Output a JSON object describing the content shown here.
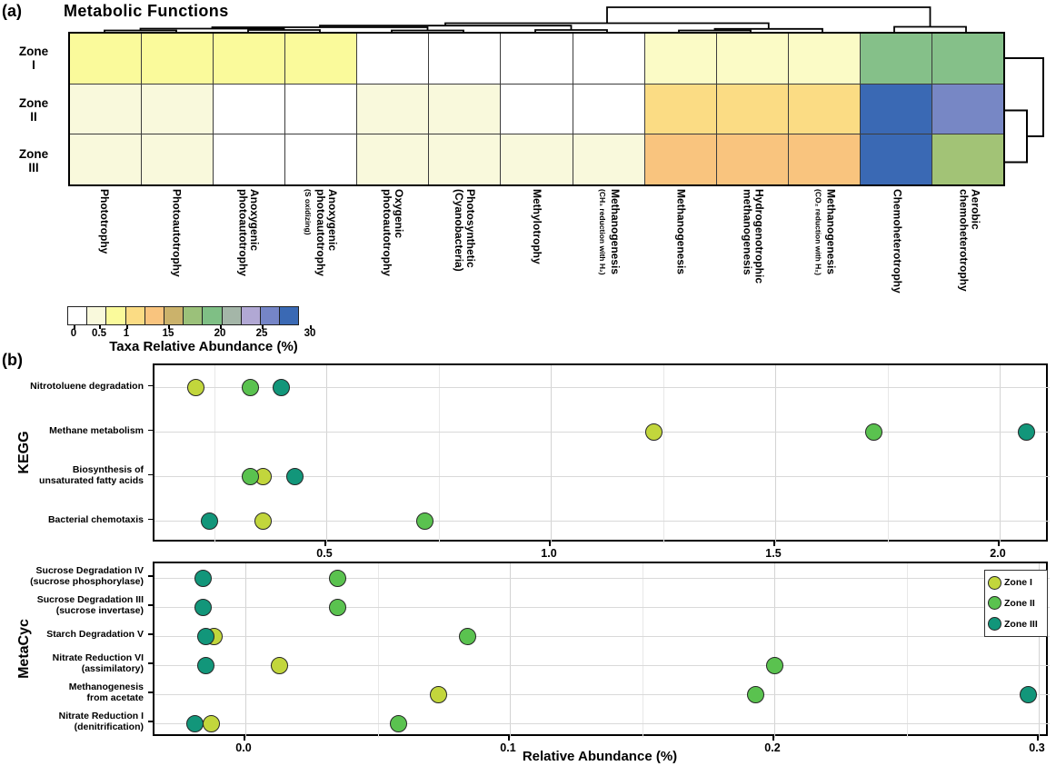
{
  "panel_a": {
    "label": "(a)",
    "title": "Metabolic Functions",
    "row_labels": [
      "Zone\nI",
      "Zone\nII",
      "Zone\nIII"
    ],
    "column_labels": [
      {
        "main": "Phototrophy",
        "sub": ""
      },
      {
        "main": "Photoautotrophy",
        "sub": ""
      },
      {
        "main": "Anoxygenic\nphotoautotrophy",
        "sub": ""
      },
      {
        "main": "Anoxygenic\nphotoautotrophy",
        "sub": "(S oxidizing)"
      },
      {
        "main": "Oxygenic\nphotoautotrophy",
        "sub": ""
      },
      {
        "main": "Photosynthetic\n(Cyanobacteria)",
        "sub": ""
      },
      {
        "main": "Methylotrophy",
        "sub": ""
      },
      {
        "main": "Methanogenesis",
        "sub": "(CH₃ reduction with H₂)"
      },
      {
        "main": "Methanogenesis",
        "sub": ""
      },
      {
        "main": "Hydrogenotrophic\nmethanogenesis",
        "sub": ""
      },
      {
        "main": "Methanogenesis",
        "sub": "(CO₂ reduction with H₂)"
      },
      {
        "main": "Chemoheterotrophy",
        "sub": ""
      },
      {
        "main": "Aerobic\nchemoheterotrophy",
        "sub": ""
      }
    ],
    "colorbar": {
      "caption": "Taxa Relative Abundance (%)",
      "swatches": [
        "#ffffff",
        "#f9f9dc",
        "#fafa9b",
        "#fbdc84",
        "#f9c47e",
        "#cbb26b",
        "#9bc17a",
        "#7fbf85",
        "#a4b6a8",
        "#b1a8d4",
        "#7585c7",
        "#3a69b4"
      ],
      "tick_labels": [
        "0",
        "0.5",
        "1",
        "15",
        "20",
        "25",
        "30"
      ],
      "tick_offsets": [
        7,
        35,
        65,
        111,
        168,
        214,
        267
      ]
    }
  },
  "panel_b": {
    "label": "(b)",
    "xlabel": "Relative Abundance (%)",
    "legend": {
      "entries": [
        "Zone I",
        "Zone II",
        "Zone III"
      ],
      "colors": [
        "#c2d63c",
        "#5ac24f",
        "#12967a"
      ]
    }
  },
  "zone_colors": {
    "zone1": "#c2d63c",
    "zone2": "#5ac24f",
    "zone3": "#12967a"
  },
  "chart_data": [
    {
      "type": "heatmap",
      "title": "Metabolic Functions",
      "rows": [
        "Zone I",
        "Zone II",
        "Zone III"
      ],
      "columns": [
        "Phototrophy",
        "Photoautotrophy",
        "Anoxygenic photoautotrophy",
        "Anoxygenic photoautotrophy (S oxidizing)",
        "Oxygenic photoautotrophy",
        "Photosynthetic (Cyanobacteria)",
        "Methylotrophy",
        "Methanogenesis (CH₃ reduction with H₂)",
        "Methanogenesis",
        "Hydrogenotrophic methanogenesis",
        "Methanogenesis (CO₂ reduction with H₂)",
        "Chemoheterotrophy",
        "Aerobic chemoheterotrophy"
      ],
      "value_note": "cell colors encode Taxa Relative Abundance (%) per non-linear scale 0,0.5,1,15,20,25,30",
      "cell_colors": [
        [
          "#fafa9b",
          "#fafa9b",
          "#fafa9b",
          "#fafa9b",
          "#ffffff",
          "#ffffff",
          "#ffffff",
          "#ffffff",
          "#fbfbc6",
          "#fbfbc6",
          "#fbfbc6",
          "#85c089",
          "#85c089"
        ],
        [
          "#f9f9dc",
          "#f9f9dc",
          "#ffffff",
          "#ffffff",
          "#f9f9dc",
          "#f9f9dc",
          "#ffffff",
          "#ffffff",
          "#fbdc84",
          "#fbdc84",
          "#fbdc84",
          "#3a69b4",
          "#7787c5"
        ],
        [
          "#f9f9dc",
          "#f9f9dc",
          "#ffffff",
          "#ffffff",
          "#f9f9dc",
          "#f9f9dc",
          "#f9f9dc",
          "#f9f9dc",
          "#f9c47e",
          "#f9c47e",
          "#f9c47e",
          "#3a69b4",
          "#a2c376"
        ]
      ],
      "colorbar_breaks": [
        "0",
        "0.5",
        "1",
        "15",
        "20",
        "25",
        "30"
      ]
    },
    {
      "type": "scatter",
      "group": "KEGG",
      "categories": [
        "Nitrotoluene degradation",
        "Methane metabolism",
        "Biosynthesis of unsaturated fatty acids",
        "Bacterial chemotaxis"
      ],
      "category_display": [
        "Nitrotoluene degradation",
        "Methane metabolism",
        "Biosynthesis of\nunsaturated fatty acids",
        "Bacterial chemotaxis"
      ],
      "series": [
        {
          "name": "Zone I",
          "values": [
            0.21,
            1.23,
            0.36,
            0.36
          ]
        },
        {
          "name": "Zone II",
          "values": [
            0.33,
            1.72,
            0.33,
            0.72
          ]
        },
        {
          "name": "Zone III",
          "values": [
            0.4,
            2.06,
            0.43,
            0.24
          ]
        }
      ],
      "xticks": [
        0.5,
        1.0,
        1.5,
        2.0
      ],
      "xtick_labels": [
        "0.5",
        "1.0",
        "1.5",
        "2.0"
      ],
      "xlabel": "Relative Abundance (%)",
      "ylabel": "KEGG",
      "xlim": [
        0.12,
        2.11
      ]
    },
    {
      "type": "scatter",
      "group": "MetaCyc",
      "categories": [
        "Sucrose Degradation IV (sucrose phosphorylase)",
        "Sucrose Degradation III (sucrose invertase)",
        "Starch Degradation V",
        "Nitrate Reduction VI (assimilatory)",
        "Methanogenesis from acetate",
        "Nitrate Reduction I (denitrification)"
      ],
      "category_display": [
        "Sucrose Degradation IV\n(sucrose phosphorylase)",
        "Sucrose Degradation III\n(sucrose invertase)",
        "Starch Degradation V",
        "Nitrate Reduction VI\n(assimilatory)",
        "Methanogenesis\nfrom acetate",
        "Nitrate Reduction I\n(denitrification)"
      ],
      "series": [
        {
          "name": "Zone I",
          "values": [
            null,
            null,
            -0.012,
            0.013,
            0.073,
            -0.013
          ]
        },
        {
          "name": "Zone II",
          "values": [
            0.035,
            0.035,
            0.084,
            0.2,
            0.193,
            0.058
          ]
        },
        {
          "name": "Zone III",
          "values": [
            -0.016,
            -0.016,
            -0.015,
            -0.015,
            0.296,
            -0.019
          ]
        }
      ],
      "xticks": [
        0.0,
        0.1,
        0.2,
        0.3
      ],
      "xtick_labels": [
        "0.0",
        "0.1",
        "0.2",
        "0.3"
      ],
      "xlabel": "Relative Abundance (%)",
      "ylabel": "MetaCyc",
      "xlim": [
        -0.034,
        0.304
      ]
    }
  ]
}
